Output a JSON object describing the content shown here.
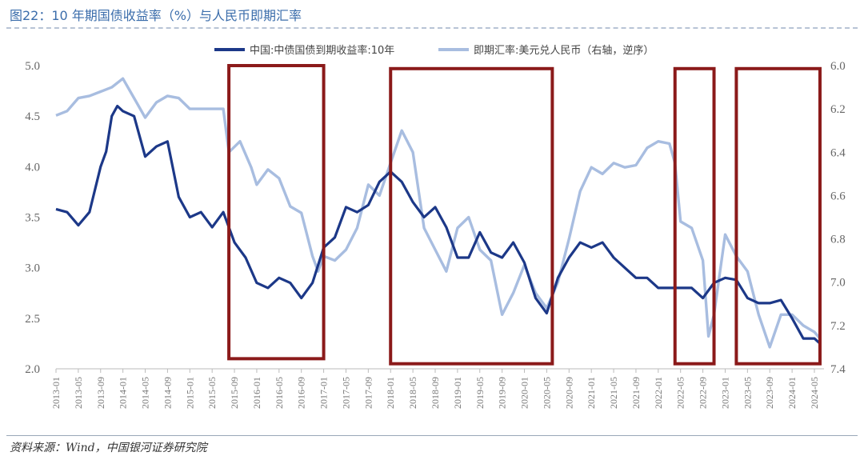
{
  "title": "图22：10 年期国债收益率（%）与人民币即期汇率",
  "source": "资料来源：Wind，中国银河证券研究院",
  "colors": {
    "yield": "#1c3888",
    "fx": "#a8bde0",
    "box": "#8b1a1a",
    "title": "#3b6dab"
  },
  "chart_data": {
    "type": "line",
    "x_ticks": [
      "2013-01",
      "2013-05",
      "2013-09",
      "2014-01",
      "2014-05",
      "2014-09",
      "2015-01",
      "2015-05",
      "2015-09",
      "2016-01",
      "2016-05",
      "2016-09",
      "2017-01",
      "2017-05",
      "2017-09",
      "2018-01",
      "2018-05",
      "2018-09",
      "2019-01",
      "2019-05",
      "2019-09",
      "2020-01",
      "2020-05",
      "2020-09",
      "2021-01",
      "2021-05",
      "2021-09",
      "2022-01",
      "2022-05",
      "2022-09",
      "2023-01",
      "2023-05",
      "2023-09",
      "2024-01",
      "2024-05"
    ],
    "y_left": {
      "min": 2.0,
      "max": 5.0,
      "ticks": [
        "5.0",
        "4.5",
        "4.0",
        "3.5",
        "3.0",
        "2.5",
        "2.0"
      ]
    },
    "y_right": {
      "min": 6.0,
      "max": 7.4,
      "inverted": true,
      "ticks": [
        "6.0",
        "6.2",
        "6.4",
        "6.6",
        "6.8",
        "7.0",
        "7.2",
        "7.4"
      ]
    },
    "legend_position": "top",
    "series": [
      {
        "name": "中国:中债国债到期收益率:10年",
        "axis": "left",
        "points": [
          [
            "2013-01",
            3.58
          ],
          [
            "2013-03",
            3.55
          ],
          [
            "2013-05",
            3.42
          ],
          [
            "2013-07",
            3.55
          ],
          [
            "2013-09",
            4.0
          ],
          [
            "2013-10",
            4.15
          ],
          [
            "2013-11",
            4.5
          ],
          [
            "2013-12",
            4.6
          ],
          [
            "2014-01",
            4.55
          ],
          [
            "2014-03",
            4.5
          ],
          [
            "2014-05",
            4.1
          ],
          [
            "2014-07",
            4.2
          ],
          [
            "2014-09",
            4.25
          ],
          [
            "2014-11",
            3.7
          ],
          [
            "2015-01",
            3.5
          ],
          [
            "2015-03",
            3.55
          ],
          [
            "2015-05",
            3.4
          ],
          [
            "2015-07",
            3.55
          ],
          [
            "2015-09",
            3.25
          ],
          [
            "2015-11",
            3.1
          ],
          [
            "2016-01",
            2.85
          ],
          [
            "2016-03",
            2.8
          ],
          [
            "2016-05",
            2.9
          ],
          [
            "2016-07",
            2.85
          ],
          [
            "2016-09",
            2.7
          ],
          [
            "2016-11",
            2.85
          ],
          [
            "2017-01",
            3.2
          ],
          [
            "2017-03",
            3.3
          ],
          [
            "2017-05",
            3.6
          ],
          [
            "2017-07",
            3.55
          ],
          [
            "2017-09",
            3.62
          ],
          [
            "2017-11",
            3.85
          ],
          [
            "2018-01",
            3.95
          ],
          [
            "2018-03",
            3.85
          ],
          [
            "2018-05",
            3.65
          ],
          [
            "2018-07",
            3.5
          ],
          [
            "2018-09",
            3.6
          ],
          [
            "2018-11",
            3.4
          ],
          [
            "2019-01",
            3.1
          ],
          [
            "2019-03",
            3.1
          ],
          [
            "2019-05",
            3.35
          ],
          [
            "2019-07",
            3.15
          ],
          [
            "2019-09",
            3.1
          ],
          [
            "2019-11",
            3.25
          ],
          [
            "2020-01",
            3.05
          ],
          [
            "2020-03",
            2.7
          ],
          [
            "2020-05",
            2.55
          ],
          [
            "2020-07",
            2.9
          ],
          [
            "2020-09",
            3.1
          ],
          [
            "2020-11",
            3.25
          ],
          [
            "2021-01",
            3.2
          ],
          [
            "2021-03",
            3.25
          ],
          [
            "2021-05",
            3.1
          ],
          [
            "2021-07",
            3.0
          ],
          [
            "2021-09",
            2.9
          ],
          [
            "2021-11",
            2.9
          ],
          [
            "2022-01",
            2.8
          ],
          [
            "2022-03",
            2.8
          ],
          [
            "2022-05",
            2.8
          ],
          [
            "2022-07",
            2.8
          ],
          [
            "2022-09",
            2.7
          ],
          [
            "2022-11",
            2.85
          ],
          [
            "2023-01",
            2.9
          ],
          [
            "2023-03",
            2.88
          ],
          [
            "2023-05",
            2.7
          ],
          [
            "2023-07",
            2.65
          ],
          [
            "2023-09",
            2.65
          ],
          [
            "2023-11",
            2.68
          ],
          [
            "2024-01",
            2.5
          ],
          [
            "2024-03",
            2.3
          ],
          [
            "2024-05",
            2.3
          ],
          [
            "2024-06",
            2.25
          ]
        ]
      },
      {
        "name": "即期汇率:美元兑人民币（右轴，逆序）",
        "axis": "right",
        "points": [
          [
            "2013-01",
            6.23
          ],
          [
            "2013-03",
            6.21
          ],
          [
            "2013-05",
            6.15
          ],
          [
            "2013-07",
            6.14
          ],
          [
            "2013-09",
            6.12
          ],
          [
            "2013-11",
            6.1
          ],
          [
            "2014-01",
            6.06
          ],
          [
            "2014-03",
            6.15
          ],
          [
            "2014-05",
            6.24
          ],
          [
            "2014-07",
            6.17
          ],
          [
            "2014-09",
            6.14
          ],
          [
            "2014-11",
            6.15
          ],
          [
            "2015-01",
            6.2
          ],
          [
            "2015-03",
            6.2
          ],
          [
            "2015-05",
            6.2
          ],
          [
            "2015-07",
            6.2
          ],
          [
            "2015-08",
            6.4
          ],
          [
            "2015-10",
            6.35
          ],
          [
            "2015-12",
            6.47
          ],
          [
            "2016-01",
            6.55
          ],
          [
            "2016-03",
            6.48
          ],
          [
            "2016-05",
            6.52
          ],
          [
            "2016-07",
            6.65
          ],
          [
            "2016-09",
            6.68
          ],
          [
            "2016-11",
            6.88
          ],
          [
            "2016-12",
            6.95
          ],
          [
            "2017-01",
            6.88
          ],
          [
            "2017-03",
            6.9
          ],
          [
            "2017-05",
            6.85
          ],
          [
            "2017-07",
            6.75
          ],
          [
            "2017-09",
            6.55
          ],
          [
            "2017-11",
            6.6
          ],
          [
            "2018-01",
            6.45
          ],
          [
            "2018-03",
            6.3
          ],
          [
            "2018-05",
            6.4
          ],
          [
            "2018-07",
            6.75
          ],
          [
            "2018-09",
            6.85
          ],
          [
            "2018-11",
            6.95
          ],
          [
            "2019-01",
            6.75
          ],
          [
            "2019-03",
            6.7
          ],
          [
            "2019-05",
            6.85
          ],
          [
            "2019-07",
            6.9
          ],
          [
            "2019-09",
            7.15
          ],
          [
            "2019-11",
            7.05
          ],
          [
            "2020-01",
            6.92
          ],
          [
            "2020-03",
            7.05
          ],
          [
            "2020-05",
            7.12
          ],
          [
            "2020-07",
            7.0
          ],
          [
            "2020-09",
            6.8
          ],
          [
            "2020-11",
            6.58
          ],
          [
            "2021-01",
            6.47
          ],
          [
            "2021-03",
            6.5
          ],
          [
            "2021-05",
            6.45
          ],
          [
            "2021-07",
            6.47
          ],
          [
            "2021-09",
            6.46
          ],
          [
            "2021-11",
            6.38
          ],
          [
            "2022-01",
            6.35
          ],
          [
            "2022-03",
            6.36
          ],
          [
            "2022-04",
            6.45
          ],
          [
            "2022-05",
            6.72
          ],
          [
            "2022-07",
            6.75
          ],
          [
            "2022-09",
            6.9
          ],
          [
            "2022-10",
            7.25
          ],
          [
            "2022-11",
            7.15
          ],
          [
            "2023-01",
            6.78
          ],
          [
            "2023-03",
            6.88
          ],
          [
            "2023-05",
            6.95
          ],
          [
            "2023-07",
            7.15
          ],
          [
            "2023-09",
            7.3
          ],
          [
            "2023-11",
            7.15
          ],
          [
            "2024-01",
            7.15
          ],
          [
            "2024-03",
            7.2
          ],
          [
            "2024-05",
            7.23
          ],
          [
            "2024-06",
            7.26
          ]
        ]
      }
    ],
    "highlight_boxes": [
      {
        "from": "2015-08",
        "to": "2017-01",
        "y_top": 5.0,
        "y_bottom": 2.1
      },
      {
        "from": "2018-01",
        "to": "2020-06",
        "y_top": 4.97,
        "y_bottom": 2.05
      },
      {
        "from": "2022-04",
        "to": "2022-11",
        "y_top": 4.97,
        "y_bottom": 2.05
      },
      {
        "from": "2023-03",
        "to": "2024-06",
        "y_top": 4.97,
        "y_bottom": 2.05
      }
    ]
  }
}
